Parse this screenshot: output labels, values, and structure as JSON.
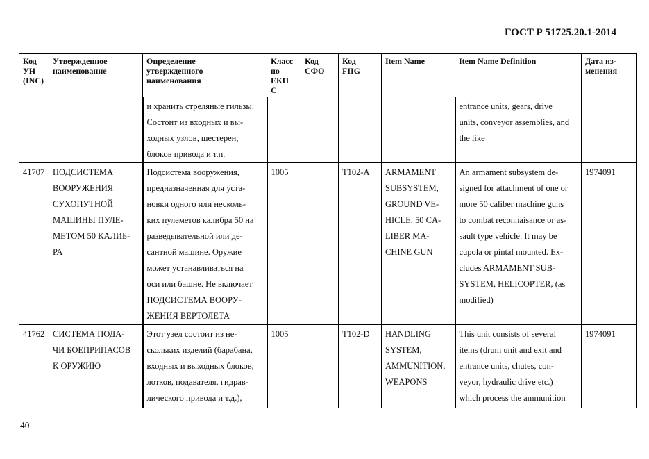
{
  "document": {
    "header": "ГОСТ Р 51725.20.1-2014",
    "page_number": "40"
  },
  "table": {
    "columns": [
      [
        "Код",
        "УН",
        "(INC)"
      ],
      [
        "Утвержденное",
        "наименование"
      ],
      [
        "Определение",
        "утвержденного",
        "наименования"
      ],
      [
        "Класс",
        "по",
        "ЕКП",
        "С"
      ],
      [
        "Код",
        "СФО"
      ],
      [
        "Код",
        "FIIG"
      ],
      [
        "Item Name"
      ],
      [
        "Item Name Definition"
      ],
      [
        "Дата из-",
        "менения"
      ]
    ],
    "rows": [
      {
        "cells": [
          [],
          [],
          [
            "и хранить стреляные гильзы.",
            "Состоит из входных и вы-",
            "ходных узлов, шестерен,",
            "блоков привода и т.п."
          ],
          [],
          [],
          [],
          [],
          [
            "entrance units, gears, drive",
            "units, conveyor assemblies, and",
            "the like"
          ],
          []
        ]
      },
      {
        "cells": [
          [
            "41707"
          ],
          [
            "ПОДСИСТЕМА",
            "ВООРУЖЕНИЯ",
            "СУХОПУТНОЙ",
            "МАШИНЫ  ПУЛЕ-",
            "МЕТОМ 50 КАЛИБ-",
            "РА"
          ],
          [
            "Подсистема вооружения,",
            "предназначенная для уста-",
            "новки одного или несколь-",
            "ких пулеметов калибра 50 на",
            "разведывательной или де-",
            "сантной машине. Оружие",
            "может устанавливаться на",
            "оси или башне. Не включает",
            "ПОДСИСТЕМА ВООРУ-",
            "ЖЕНИЯ ВЕРТОЛЕТА"
          ],
          [
            "1005"
          ],
          [],
          [
            "T102-A"
          ],
          [
            "ARMAMENT",
            "SUBSYSTEM,",
            "GROUND VE-",
            "HICLE, 50 CA-",
            "LIBER MA-",
            "CHINE GUN"
          ],
          [
            "An armament subsystem de-",
            "signed for attachment of one or",
            "more 50 caliber machine guns",
            "to combat reconnaisance or as-",
            "sault type vehicle. It may be",
            "cupola or pintal mounted. Ex-",
            "cludes ARMAMENT SUB-",
            "SYSTEM, HELICOPTER, (as",
            "modified)"
          ],
          [
            "1974091"
          ]
        ]
      },
      {
        "cells": [
          [
            "41762"
          ],
          [
            "СИСТЕМА ПОДА-",
            "ЧИ БОЕПРИПАСОВ",
            "К ОРУЖИЮ"
          ],
          [
            "Этот узел состоит из не-",
            "скольких изделий (барабана,",
            "входных и выходных блоков,",
            "лотков, подавателя, гидрав-",
            "лического привода и т.д.),"
          ],
          [
            "1005"
          ],
          [],
          [
            "T102-D"
          ],
          [
            "HANDLING",
            "SYSTEM,",
            "AMMUNITION,",
            "WEAPONS"
          ],
          [
            "This unit consists of several",
            "items (drum unit and exit and",
            "entrance units, chutes, con-",
            "veyor, hydraulic drive etc.)",
            "which process the ammunition"
          ],
          [
            "1974091"
          ]
        ]
      }
    ]
  }
}
